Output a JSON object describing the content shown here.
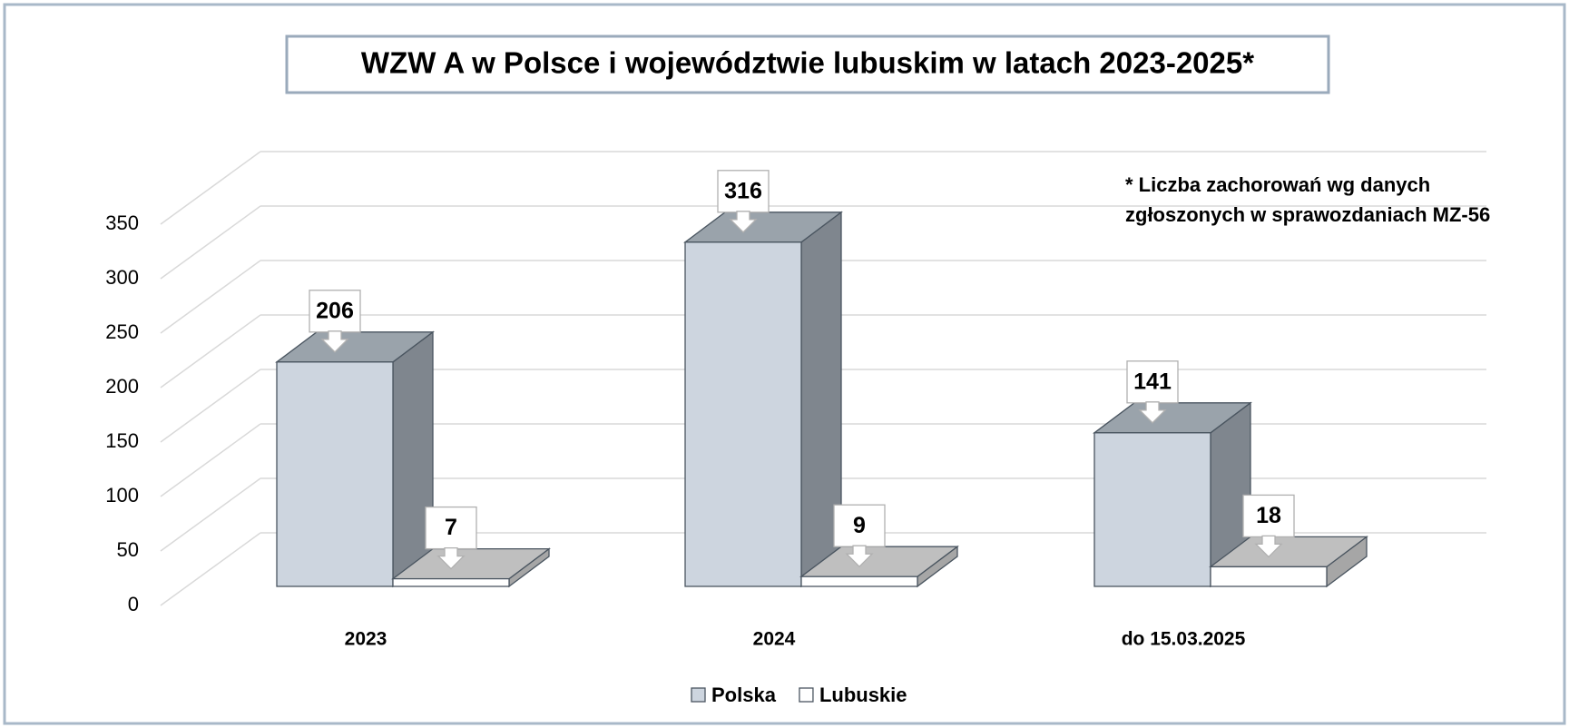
{
  "chart_data": {
    "type": "bar3d",
    "title": "WZW A w Polsce i województwie lubuskim w latach 2023-2025*",
    "annotation": [
      "* Liczba zachorowań wg danych",
      "zgłoszonych w sprawozdaniach MZ-56"
    ],
    "categories": [
      "2023",
      "2024",
      "do 15.03.2025"
    ],
    "series": [
      {
        "name": "Polska",
        "color": "#cdd5df",
        "values": [
          206,
          316,
          141
        ]
      },
      {
        "name": "Lubuskie",
        "color": "#ffffff",
        "values": [
          7,
          9,
          18
        ]
      }
    ],
    "ylim": [
      0,
      350
    ],
    "yticks": [
      0,
      50,
      100,
      150,
      200,
      250,
      300,
      350
    ],
    "grid": true,
    "legend": "bottom"
  }
}
